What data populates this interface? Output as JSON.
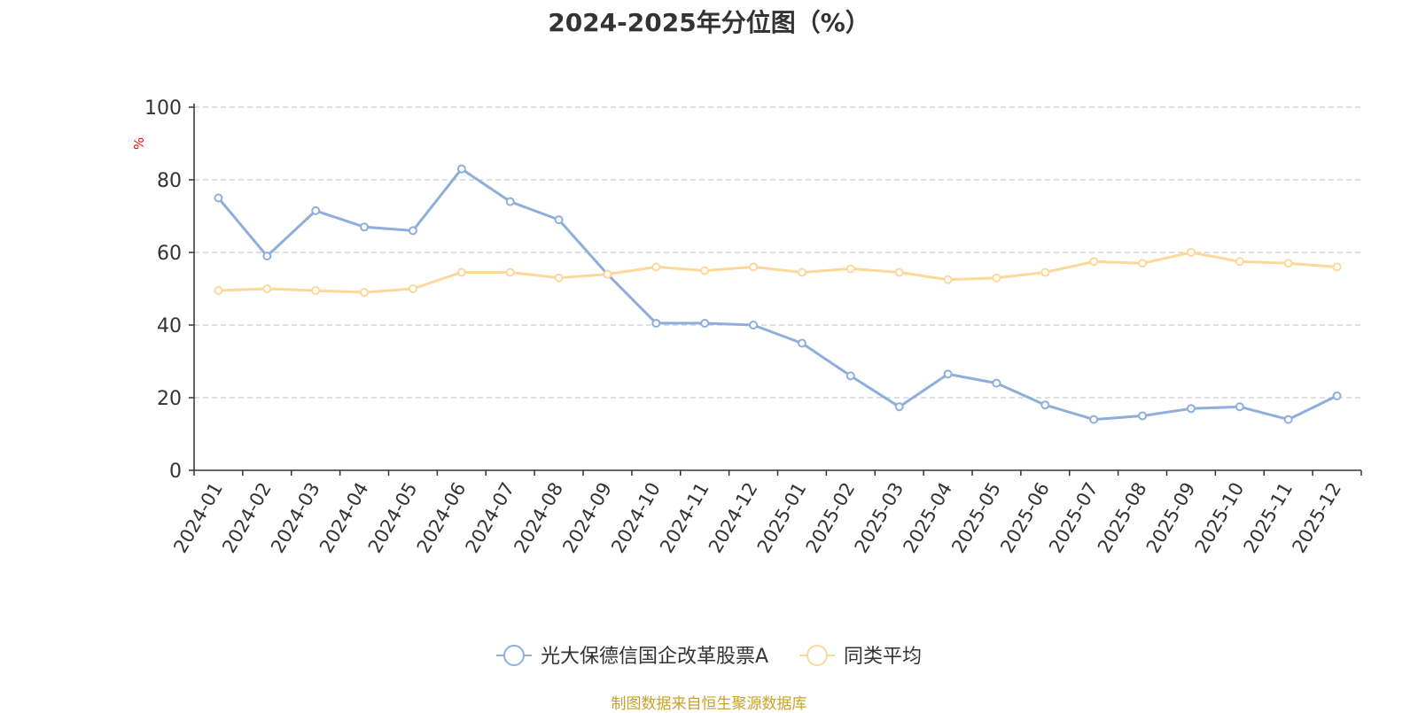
{
  "title": "2024-2025年分位图（%）",
  "source": "制图数据来自恒生聚源数据库",
  "chart_data": {
    "type": "line",
    "title": "2024-2025年分位图（%）",
    "ylabel": "%",
    "xlabel": "",
    "ylim": [
      0,
      100
    ],
    "yticks": [
      0,
      20,
      40,
      60,
      80,
      100
    ],
    "grid": true,
    "legend_position": "bottom-center",
    "categories": [
      "2024-01",
      "2024-02",
      "2024-03",
      "2024-04",
      "2024-05",
      "2024-06",
      "2024-07",
      "2024-08",
      "2024-09",
      "2024-10",
      "2024-11",
      "2024-12",
      "2025-01",
      "2025-02",
      "2025-03",
      "2025-04",
      "2025-05",
      "2025-06",
      "2025-07",
      "2025-08",
      "2025-09",
      "2025-10",
      "2025-11",
      "2025-12"
    ],
    "series": [
      {
        "name": "光大保德信国企改革股票A",
        "color": "#8eaedc",
        "values": [
          75,
          59,
          71.5,
          67,
          66,
          83,
          74,
          69,
          54,
          40.5,
          40.5,
          40,
          35,
          26,
          17.5,
          26.5,
          24,
          18,
          14,
          15,
          17,
          17.5,
          14,
          20.5
        ]
      },
      {
        "name": "同类平均",
        "color": "#fdd899",
        "values": [
          49.5,
          50,
          49.5,
          49,
          50,
          54.5,
          54.5,
          53,
          54,
          56,
          55,
          56,
          54.5,
          55.5,
          54.5,
          52.5,
          53,
          54.5,
          57.5,
          57,
          60,
          57.5,
          57,
          56
        ]
      }
    ]
  }
}
